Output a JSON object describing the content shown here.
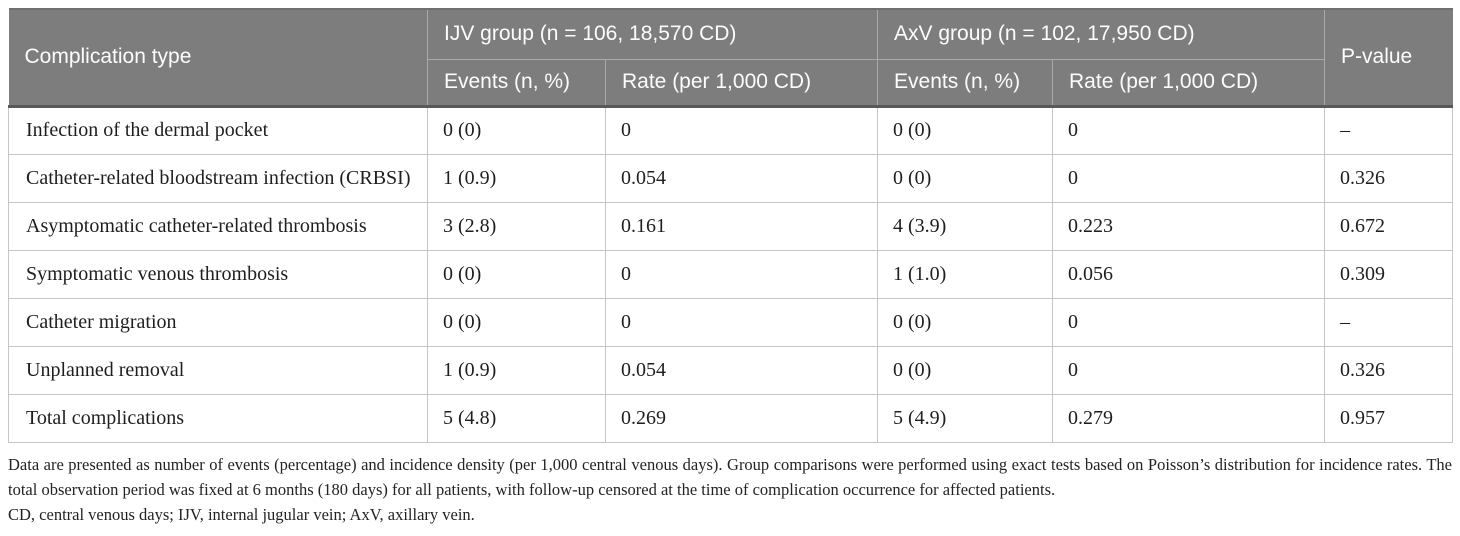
{
  "table": {
    "header": {
      "col_complication": "Complication type",
      "group_ijv": "IJV group (n = 106, 18,570 CD)",
      "group_axv": "AxV group (n = 102, 17,950 CD)",
      "sub_events_ijv": "Events (n, %)",
      "sub_rate_ijv": "Rate (per 1,000 CD)",
      "sub_events_axv": "Events (n, %)",
      "sub_rate_axv": "Rate (per 1,000 CD)",
      "pvalue": "P-value"
    },
    "rows": [
      {
        "type": "Infection of the dermal pocket",
        "ijv_events": "0 (0)",
        "ijv_rate": "0",
        "axv_events": "0 (0)",
        "axv_rate": "0",
        "p": "–"
      },
      {
        "type": "Catheter-related bloodstream infection (CRBSI)",
        "ijv_events": "1 (0.9)",
        "ijv_rate": "0.054",
        "axv_events": "0 (0)",
        "axv_rate": "0",
        "p": "0.326"
      },
      {
        "type": "Asymptomatic catheter-related thrombosis",
        "ijv_events": "3 (2.8)",
        "ijv_rate": "0.161",
        "axv_events": "4 (3.9)",
        "axv_rate": "0.223",
        "p": "0.672"
      },
      {
        "type": "Symptomatic venous thrombosis",
        "ijv_events": "0 (0)",
        "ijv_rate": "0",
        "axv_events": "1 (1.0)",
        "axv_rate": "0.056",
        "p": "0.309"
      },
      {
        "type": "Catheter migration",
        "ijv_events": "0 (0)",
        "ijv_rate": "0",
        "axv_events": "0 (0)",
        "axv_rate": "0",
        "p": "–"
      },
      {
        "type": "Unplanned removal",
        "ijv_events": "1 (0.9)",
        "ijv_rate": "0.054",
        "axv_events": "0 (0)",
        "axv_rate": "0",
        "p": "0.326"
      },
      {
        "type": "Total complications",
        "ijv_events": "5 (4.8)",
        "ijv_rate": "0.269",
        "axv_events": "5 (4.9)",
        "axv_rate": "0.279",
        "p": "0.957"
      }
    ]
  },
  "footer": {
    "note": "Data are presented as number of events (percentage) and incidence density (per 1,000 central venous days). Group comparisons were performed using exact tests based on Poisson’s distribution for incidence rates. The total observation period was fixed at 6 months (180 days) for all patients, with follow-up censored at the time of complication occurrence for affected patients.",
    "abbreviations": "CD, central venous days; IJV, internal jugular vein; AxV, axillary vein."
  },
  "colors": {
    "header_background": "#7d7d7d",
    "header_text": "#fcfcfc",
    "header_divider": "#a9a9a9",
    "header_bottom_border": "#595959",
    "body_border": "#c6c6c6",
    "body_text": "#1e1e1e",
    "footnote_text": "#232323"
  }
}
